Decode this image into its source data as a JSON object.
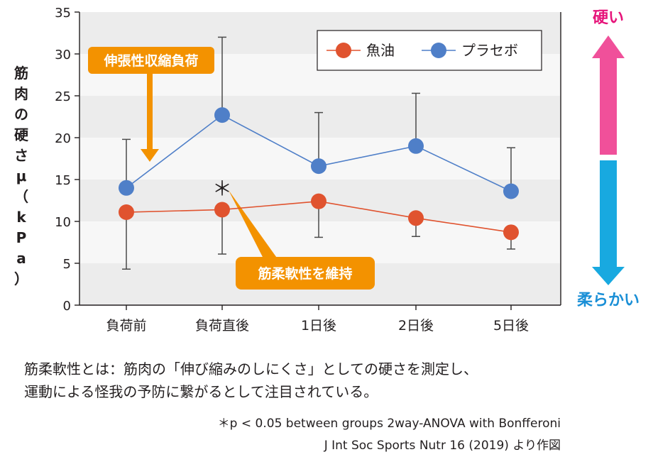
{
  "chart_data": {
    "type": "line",
    "categories": [
      "負荷前",
      "負荷直後",
      "1日後",
      "2日後",
      "5日後"
    ],
    "ylabel": "筋肉の硬さμ（kPa）",
    "ylim": [
      0,
      35
    ],
    "yticks": [
      0,
      5,
      10,
      15,
      20,
      25,
      30,
      35
    ],
    "grid": "alternating horizontal bands",
    "legend_position": "top-right",
    "series": [
      {
        "name": "魚油",
        "color": "#e0532f",
        "values": [
          11.1,
          11.4,
          12.4,
          10.4,
          8.7
        ],
        "error_low": [
          4.3,
          6.1,
          8.1,
          8.2,
          6.7
        ],
        "error_high": [
          null,
          null,
          null,
          null,
          null
        ]
      },
      {
        "name": "プラセボ",
        "color": "#4f7fc8",
        "values": [
          14.0,
          22.7,
          16.6,
          19.0,
          13.6
        ],
        "error_low": [
          null,
          null,
          null,
          null,
          null
        ],
        "error_high": [
          19.8,
          32.0,
          23.0,
          25.3,
          18.8
        ]
      }
    ],
    "significance_marker": {
      "text": "＊",
      "category_index": 1
    },
    "annotations": {
      "top_callout": "伸張性収縮負荷",
      "bottom_callout": "筋柔軟性を維持"
    },
    "side_axis": {
      "top_label": "硬い",
      "bottom_label": "柔らかい",
      "top_color": "#f0509a",
      "bottom_color": "#18a9e0"
    }
  },
  "caption": {
    "line1": "筋柔軟性とは：筋肉の「伸び縮みのしにくさ」としての硬さを測定し、",
    "line2": "運動による怪我の予防に繋がるとして注目されている。"
  },
  "notes": {
    "stat": "＊p < 0.05 between groups 2way-ANOVA with Bonfferoni",
    "source": "J Int Soc Sports Nutr 16 (2019) より作図"
  },
  "colors": {
    "callout": "#f39200",
    "band": "#ececec",
    "axis": "#231f20"
  }
}
